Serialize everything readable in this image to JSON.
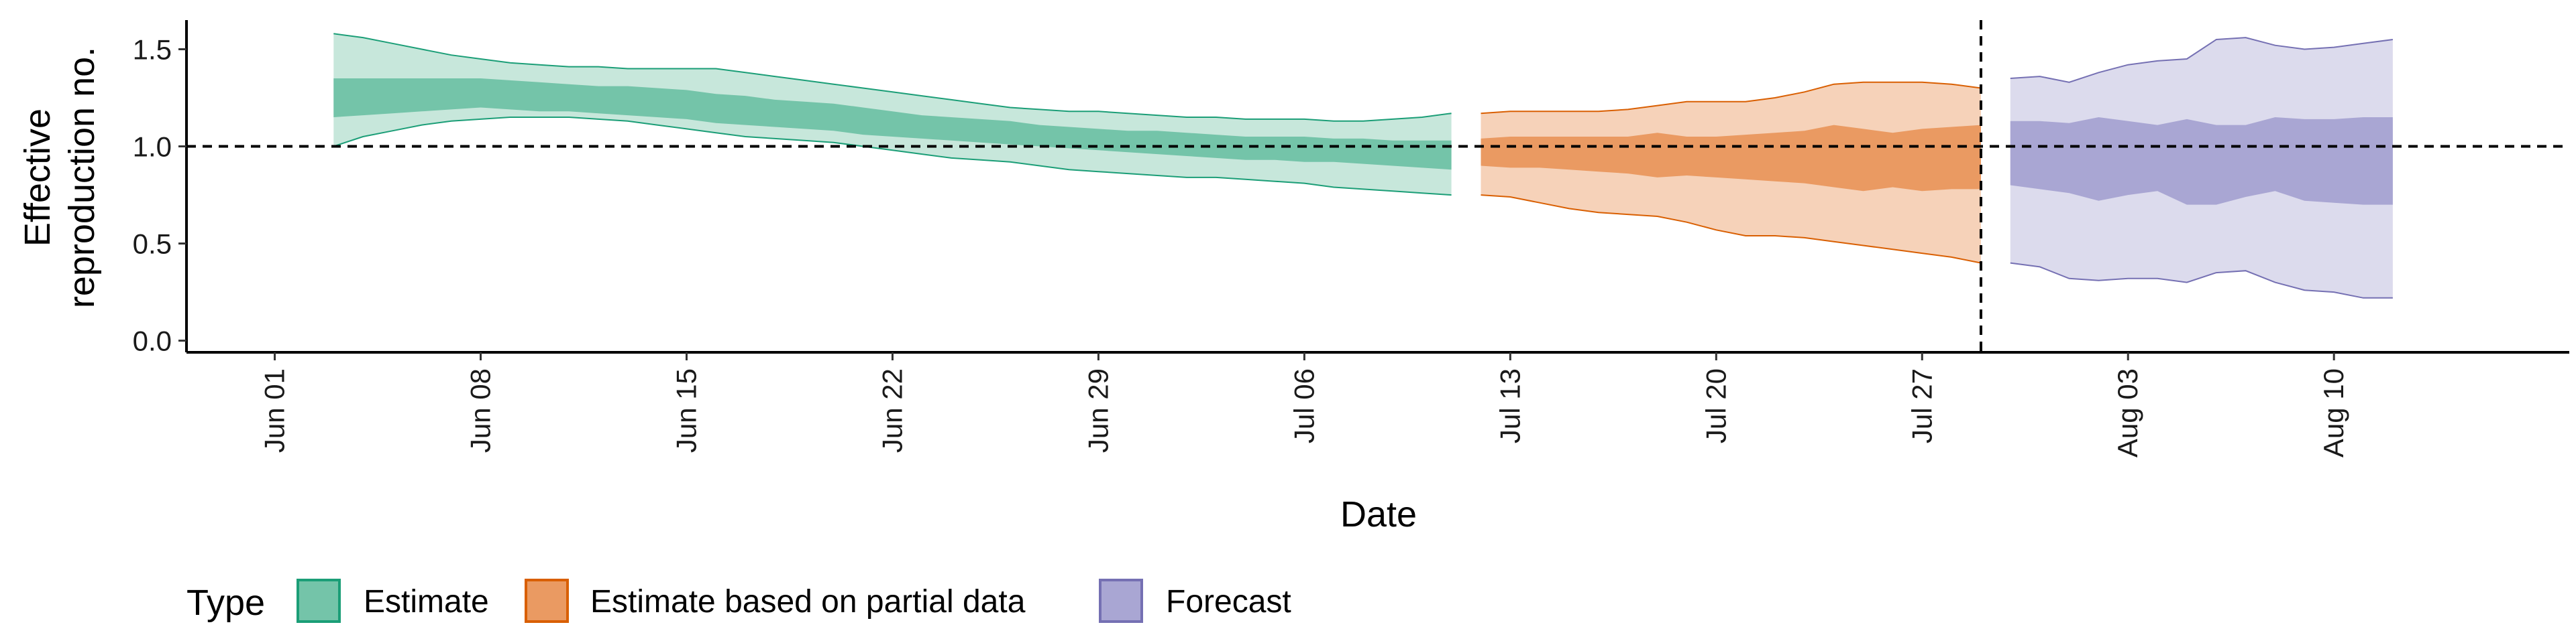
{
  "chart_data": {
    "type": "area",
    "xlabel": "Date",
    "ylabel": [
      "Effective",
      "reproduction no."
    ],
    "x_range": [
      "2020-05-29",
      "2020-08-18"
    ],
    "ylim": [
      -0.06,
      1.65
    ],
    "y_ticks": [
      0.0,
      0.5,
      1.0,
      1.5
    ],
    "y_tick_labels": [
      "0.0",
      "0.5",
      "1.0",
      "1.5"
    ],
    "x_ticks": [
      "2020-06-01",
      "2020-06-08",
      "2020-06-15",
      "2020-06-22",
      "2020-06-29",
      "2020-07-06",
      "2020-07-13",
      "2020-07-20",
      "2020-07-27",
      "2020-08-03",
      "2020-08-10"
    ],
    "x_tick_labels": [
      "Jun 01",
      "Jun 08",
      "Jun 15",
      "Jun 22",
      "Jun 29",
      "Jul 06",
      "Jul 13",
      "Jul 20",
      "Jul 27",
      "Aug 03",
      "Aug 10"
    ],
    "reference_line_y": 1.0,
    "reference_line_x": "2020-07-29",
    "grid": false,
    "legend": {
      "title": "Type",
      "position": "bottom-left",
      "items": [
        {
          "label": "Estimate",
          "fill": "#74c4a9",
          "stroke": "#1b9e77"
        },
        {
          "label": "Estimate based on partial data",
          "fill": "#ea9a62",
          "stroke": "#d95f02"
        },
        {
          "label": "Forecast",
          "fill": "#a9a6d3",
          "stroke": "#7570b3"
        }
      ]
    },
    "series": [
      {
        "name": "Estimate",
        "color": "#1b9e77",
        "outer_fill": "#c7e7db",
        "inner_fill": "#74c4a9",
        "points": [
          [
            "2020-06-03",
            1.0,
            1.15,
            1.35,
            1.58
          ],
          [
            "2020-06-04",
            1.05,
            1.16,
            1.35,
            1.56
          ],
          [
            "2020-06-05",
            1.08,
            1.17,
            1.35,
            1.53
          ],
          [
            "2020-06-06",
            1.11,
            1.18,
            1.35,
            1.5
          ],
          [
            "2020-06-07",
            1.13,
            1.19,
            1.35,
            1.47
          ],
          [
            "2020-06-08",
            1.14,
            1.2,
            1.35,
            1.45
          ],
          [
            "2020-06-09",
            1.15,
            1.19,
            1.34,
            1.43
          ],
          [
            "2020-06-10",
            1.15,
            1.18,
            1.33,
            1.42
          ],
          [
            "2020-06-11",
            1.15,
            1.18,
            1.32,
            1.41
          ],
          [
            "2020-06-12",
            1.14,
            1.17,
            1.31,
            1.41
          ],
          [
            "2020-06-13",
            1.13,
            1.16,
            1.31,
            1.4
          ],
          [
            "2020-06-14",
            1.11,
            1.15,
            1.3,
            1.4
          ],
          [
            "2020-06-15",
            1.09,
            1.14,
            1.29,
            1.4
          ],
          [
            "2020-06-16",
            1.07,
            1.12,
            1.27,
            1.4
          ],
          [
            "2020-06-17",
            1.05,
            1.11,
            1.26,
            1.38
          ],
          [
            "2020-06-18",
            1.04,
            1.1,
            1.24,
            1.36
          ],
          [
            "2020-06-19",
            1.03,
            1.09,
            1.23,
            1.34
          ],
          [
            "2020-06-20",
            1.02,
            1.08,
            1.22,
            1.32
          ],
          [
            "2020-06-21",
            1.0,
            1.06,
            1.2,
            1.3
          ],
          [
            "2020-06-22",
            0.98,
            1.05,
            1.18,
            1.28
          ],
          [
            "2020-06-23",
            0.96,
            1.04,
            1.16,
            1.26
          ],
          [
            "2020-06-24",
            0.94,
            1.03,
            1.15,
            1.24
          ],
          [
            "2020-06-25",
            0.93,
            1.02,
            1.14,
            1.22
          ],
          [
            "2020-06-26",
            0.92,
            1.01,
            1.13,
            1.2
          ],
          [
            "2020-06-27",
            0.9,
            1.0,
            1.11,
            1.19
          ],
          [
            "2020-06-28",
            0.88,
            0.99,
            1.1,
            1.18
          ],
          [
            "2020-06-29",
            0.87,
            0.98,
            1.09,
            1.18
          ],
          [
            "2020-06-30",
            0.86,
            0.97,
            1.08,
            1.17
          ],
          [
            "2020-07-01",
            0.85,
            0.96,
            1.08,
            1.16
          ],
          [
            "2020-07-02",
            0.84,
            0.95,
            1.07,
            1.15
          ],
          [
            "2020-07-03",
            0.84,
            0.94,
            1.06,
            1.15
          ],
          [
            "2020-07-04",
            0.83,
            0.93,
            1.05,
            1.14
          ],
          [
            "2020-07-05",
            0.82,
            0.93,
            1.05,
            1.14
          ],
          [
            "2020-07-06",
            0.81,
            0.92,
            1.05,
            1.14
          ],
          [
            "2020-07-07",
            0.79,
            0.92,
            1.04,
            1.13
          ],
          [
            "2020-07-08",
            0.78,
            0.91,
            1.04,
            1.13
          ],
          [
            "2020-07-09",
            0.77,
            0.9,
            1.03,
            1.14
          ],
          [
            "2020-07-10",
            0.76,
            0.89,
            1.03,
            1.15
          ],
          [
            "2020-07-11",
            0.75,
            0.88,
            1.03,
            1.17
          ]
        ]
      },
      {
        "name": "Estimate based on partial data",
        "color": "#d95f02",
        "outer_fill": "#f6d2b9",
        "inner_fill": "#ea9a62",
        "points": [
          [
            "2020-07-12",
            0.75,
            0.9,
            1.04,
            1.17
          ],
          [
            "2020-07-13",
            0.74,
            0.89,
            1.05,
            1.18
          ],
          [
            "2020-07-14",
            0.71,
            0.89,
            1.05,
            1.18
          ],
          [
            "2020-07-15",
            0.68,
            0.88,
            1.05,
            1.18
          ],
          [
            "2020-07-16",
            0.66,
            0.87,
            1.05,
            1.18
          ],
          [
            "2020-07-17",
            0.65,
            0.86,
            1.05,
            1.19
          ],
          [
            "2020-07-18",
            0.64,
            0.84,
            1.07,
            1.21
          ],
          [
            "2020-07-19",
            0.61,
            0.85,
            1.05,
            1.23
          ],
          [
            "2020-07-20",
            0.57,
            0.84,
            1.05,
            1.23
          ],
          [
            "2020-07-21",
            0.54,
            0.83,
            1.06,
            1.23
          ],
          [
            "2020-07-22",
            0.54,
            0.82,
            1.07,
            1.25
          ],
          [
            "2020-07-23",
            0.53,
            0.81,
            1.08,
            1.28
          ],
          [
            "2020-07-24",
            0.51,
            0.79,
            1.11,
            1.32
          ],
          [
            "2020-07-25",
            0.49,
            0.77,
            1.09,
            1.33
          ],
          [
            "2020-07-26",
            0.47,
            0.79,
            1.07,
            1.33
          ],
          [
            "2020-07-27",
            0.45,
            0.77,
            1.09,
            1.33
          ],
          [
            "2020-07-28",
            0.43,
            0.78,
            1.1,
            1.32
          ],
          [
            "2020-07-29",
            0.4,
            0.78,
            1.11,
            1.3
          ]
        ]
      },
      {
        "name": "Forecast",
        "color": "#7570b3",
        "outer_fill": "#dcdbed",
        "inner_fill": "#a9a6d3",
        "points": [
          [
            "2020-07-30",
            0.4,
            0.8,
            1.13,
            1.35
          ],
          [
            "2020-07-31",
            0.38,
            0.78,
            1.13,
            1.36
          ],
          [
            "2020-08-01",
            0.32,
            0.76,
            1.12,
            1.33
          ],
          [
            "2020-08-02",
            0.31,
            0.72,
            1.15,
            1.38
          ],
          [
            "2020-08-03",
            0.32,
            0.75,
            1.13,
            1.42
          ],
          [
            "2020-08-04",
            0.32,
            0.77,
            1.11,
            1.44
          ],
          [
            "2020-08-05",
            0.3,
            0.7,
            1.14,
            1.45
          ],
          [
            "2020-08-06",
            0.35,
            0.7,
            1.11,
            1.55
          ],
          [
            "2020-08-07",
            0.36,
            0.74,
            1.11,
            1.56
          ],
          [
            "2020-08-08",
            0.3,
            0.77,
            1.15,
            1.52
          ],
          [
            "2020-08-09",
            0.26,
            0.72,
            1.14,
            1.5
          ],
          [
            "2020-08-10",
            0.25,
            0.71,
            1.14,
            1.51
          ],
          [
            "2020-08-11",
            0.22,
            0.7,
            1.15,
            1.53
          ],
          [
            "2020-08-12",
            0.22,
            0.7,
            1.15,
            1.55
          ]
        ]
      }
    ]
  }
}
